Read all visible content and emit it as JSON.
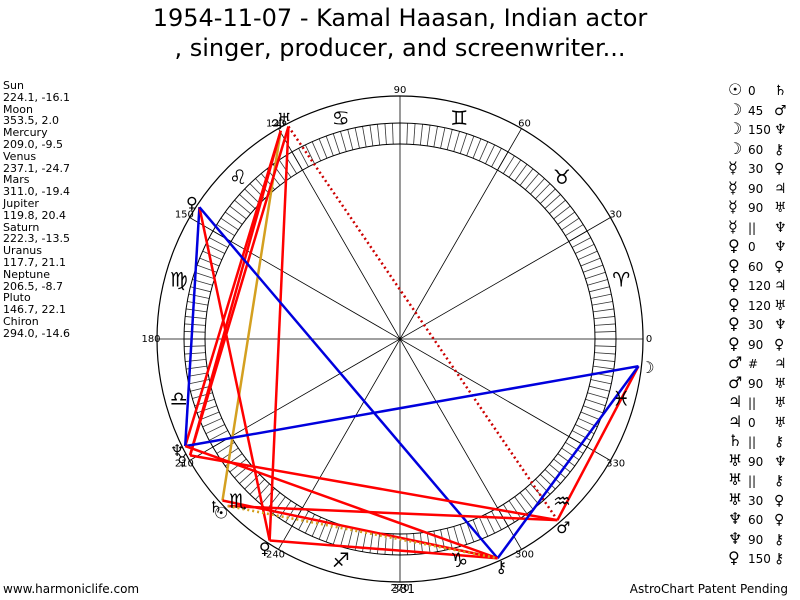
{
  "title_line1": "1954-11-07 - Kamal Haasan, Indian actor",
  "title_line2": ", singer, producer, and screenwriter...",
  "planets": [
    {
      "name": "Sun",
      "coords": "224.1, -16.1",
      "glyph": "☉",
      "lon": 224.1
    },
    {
      "name": "Moon",
      "coords": "353.5, 2.0",
      "glyph": "☽",
      "lon": 353.5
    },
    {
      "name": "Mercury",
      "coords": "209.0, -9.5",
      "glyph": "☿",
      "lon": 209.0
    },
    {
      "name": "Venus",
      "coords": "237.1, -24.7",
      "glyph": "♀",
      "lon": 237.1
    },
    {
      "name": "Mars",
      "coords": "311.0, -19.4",
      "glyph": "♂",
      "lon": 311.0
    },
    {
      "name": "Jupiter",
      "coords": "119.8, 20.4",
      "glyph": "♃",
      "lon": 119.8
    },
    {
      "name": "Saturn",
      "coords": "222.3, -13.5",
      "glyph": "♄",
      "lon": 222.3
    },
    {
      "name": "Uranus",
      "coords": "117.7, 21.1",
      "glyph": "♅",
      "lon": 117.7
    },
    {
      "name": "Neptune",
      "coords": "206.5, -8.7",
      "glyph": "♆",
      "lon": 206.5
    },
    {
      "name": "Pluto",
      "coords": "146.7, 22.1",
      "glyph": "♀",
      "lon": 146.7
    },
    {
      "name": "Chiron",
      "coords": "294.0, -14.6",
      "glyph": "⚷",
      "lon": 294.0
    }
  ],
  "aspects": [
    {
      "p1": "☉",
      "asp": "0",
      "p2": "♄"
    },
    {
      "p1": "☽",
      "asp": "45",
      "p2": "♂"
    },
    {
      "p1": "☽",
      "asp": "150",
      "p2": "♆"
    },
    {
      "p1": "☽",
      "asp": "60",
      "p2": "⚷"
    },
    {
      "p1": "☿",
      "asp": "30",
      "p2": "♀"
    },
    {
      "p1": "☿",
      "asp": "90",
      "p2": "♃"
    },
    {
      "p1": "☿",
      "asp": "90",
      "p2": "♅"
    },
    {
      "p1": "☿",
      "asp": "||",
      "p2": "♆"
    },
    {
      "p1": "♀",
      "asp": "0",
      "p2": "♆"
    },
    {
      "p1": "♀",
      "asp": "60",
      "p2": "♀"
    },
    {
      "p1": "♀",
      "asp": "120",
      "p2": "♃"
    },
    {
      "p1": "♀",
      "asp": "120",
      "p2": "♅"
    },
    {
      "p1": "♀",
      "asp": "30",
      "p2": "♆"
    },
    {
      "p1": "♀",
      "asp": "90",
      "p2": "♀"
    },
    {
      "p1": "♂",
      "asp": "#",
      "p2": "♃"
    },
    {
      "p1": "♂",
      "asp": "90",
      "p2": "♅"
    },
    {
      "p1": "♃",
      "asp": "||",
      "p2": "♅"
    },
    {
      "p1": "♃",
      "asp": "0",
      "p2": "♅"
    },
    {
      "p1": "♄",
      "asp": "||",
      "p2": "⚷"
    },
    {
      "p1": "♅",
      "asp": "90",
      "p2": "♆"
    },
    {
      "p1": "♅",
      "asp": "||",
      "p2": "⚷"
    },
    {
      "p1": "♅",
      "asp": "30",
      "p2": "♀"
    },
    {
      "p1": "♆",
      "asp": "60",
      "p2": "♀"
    },
    {
      "p1": "♆",
      "asp": "90",
      "p2": "⚷"
    },
    {
      "p1": "♀",
      "asp": "150",
      "p2": "⚷"
    }
  ],
  "degree_labels": [
    {
      "deg": 0,
      "text": "0"
    },
    {
      "deg": 30,
      "text": "30"
    },
    {
      "deg": 60,
      "text": "60"
    },
    {
      "deg": 90,
      "text": "90"
    },
    {
      "deg": 120,
      "text": "120"
    },
    {
      "deg": 150,
      "text": "150"
    },
    {
      "deg": 180,
      "text": "180"
    },
    {
      "deg": 210,
      "text": "210"
    },
    {
      "deg": 240,
      "text": "240"
    },
    {
      "deg": 270,
      "text": "270"
    },
    {
      "deg": 300,
      "text": "300"
    },
    {
      "deg": 330,
      "text": "330"
    }
  ],
  "signs": [
    {
      "glyph": "♈",
      "deg": 15
    },
    {
      "glyph": "♉",
      "deg": 45
    },
    {
      "glyph": "♊",
      "deg": 75
    },
    {
      "glyph": "♋",
      "deg": 105
    },
    {
      "glyph": "♌",
      "deg": 135
    },
    {
      "glyph": "♍",
      "deg": 165
    },
    {
      "glyph": "♎",
      "deg": 195
    },
    {
      "glyph": "♏",
      "deg": 225
    },
    {
      "glyph": "♐",
      "deg": 255
    },
    {
      "glyph": "♑",
      "deg": 285
    },
    {
      "glyph": "♒",
      "deg": 315
    },
    {
      "glyph": "♓",
      "deg": 345
    }
  ],
  "aspect_lines": [
    {
      "a": 117.7,
      "b": 311.0,
      "color": "#cc0000",
      "style": "dotted"
    },
    {
      "a": 119.8,
      "b": 222.3,
      "color": "#d4a020",
      "style": "solid"
    },
    {
      "a": 117.7,
      "b": 237.1,
      "color": "#ff0000",
      "style": "solid"
    },
    {
      "a": 119.8,
      "b": 206.5,
      "color": "#ff0000",
      "style": "solid"
    },
    {
      "a": 117.7,
      "b": 209.0,
      "color": "#ff0000",
      "style": "solid"
    },
    {
      "a": 119.8,
      "b": 209.0,
      "color": "#ff0000",
      "style": "solid"
    },
    {
      "a": 146.7,
      "b": 206.5,
      "color": "#0000dd",
      "style": "solid"
    },
    {
      "a": 146.7,
      "b": 237.1,
      "color": "#ff0000",
      "style": "solid"
    },
    {
      "a": 146.7,
      "b": 294.0,
      "color": "#0000dd",
      "style": "solid"
    },
    {
      "a": 206.5,
      "b": 353.5,
      "color": "#0000dd",
      "style": "solid"
    },
    {
      "a": 206.5,
      "b": 294.0,
      "color": "#ff0000",
      "style": "solid"
    },
    {
      "a": 209.0,
      "b": 311.0,
      "color": "#ff0000",
      "style": "solid"
    },
    {
      "a": 224.1,
      "b": 311.0,
      "color": "#ff0000",
      "style": "solid"
    },
    {
      "a": 222.3,
      "b": 294.0,
      "color": "#ff0000",
      "style": "solid"
    },
    {
      "a": 353.5,
      "b": 311.0,
      "color": "#ff0000",
      "style": "solid"
    },
    {
      "a": 353.5,
      "b": 294.0,
      "color": "#0000dd",
      "style": "solid"
    },
    {
      "a": 237.1,
      "b": 294.0,
      "color": "#ff0000",
      "style": "solid"
    },
    {
      "a": 224.1,
      "b": 294.0,
      "color": "#d4a020",
      "style": "dotted"
    }
  ],
  "footer_left": "www.harmoniclife.com",
  "footer_center": "381",
  "footer_right": "AstroChart Patent Pending"
}
